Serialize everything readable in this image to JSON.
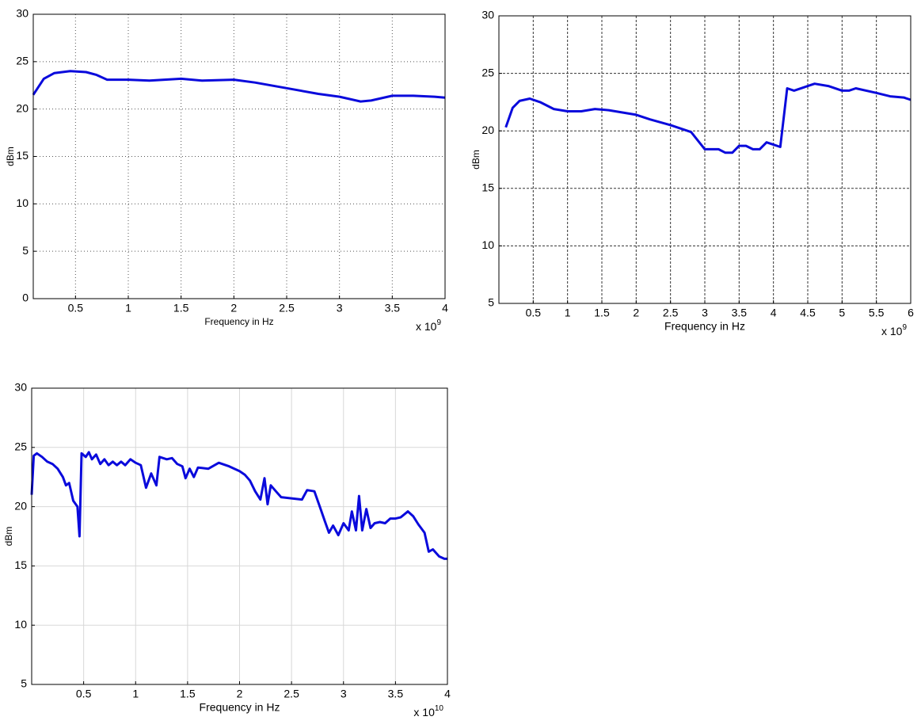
{
  "chart_data": [
    {
      "type": "line",
      "xlabel": "Frequency in Hz",
      "ylabel": "dBm",
      "x_scale_label": "x 10",
      "x_scale_exponent": "9",
      "xlim": [
        0.1,
        4
      ],
      "ylim": [
        0,
        30
      ],
      "xticks": [
        0.5,
        1,
        1.5,
        2,
        2.5,
        3,
        3.5,
        4
      ],
      "yticks": [
        0,
        5,
        10,
        15,
        20,
        25,
        30
      ],
      "grid": true,
      "grid_style": "dotted",
      "color": "#0a0adc",
      "x": [
        0.1,
        0.2,
        0.3,
        0.45,
        0.6,
        0.7,
        0.8,
        1.0,
        1.2,
        1.5,
        1.7,
        2.0,
        2.2,
        2.5,
        2.8,
        3.0,
        3.2,
        3.3,
        3.5,
        3.7,
        3.9,
        4.0
      ],
      "values": [
        21.5,
        23.2,
        23.8,
        24.0,
        23.9,
        23.6,
        23.1,
        23.1,
        23.0,
        23.2,
        23.0,
        23.1,
        22.8,
        22.2,
        21.6,
        21.3,
        20.8,
        20.9,
        21.4,
        21.4,
        21.3,
        21.2
      ]
    },
    {
      "type": "line",
      "xlabel": "Frequency in Hz",
      "ylabel": "dBm",
      "x_scale_label": "x 10",
      "x_scale_exponent": "9",
      "xlim": [
        0,
        6
      ],
      "ylim": [
        5,
        30
      ],
      "xticks": [
        0.5,
        1,
        1.5,
        2,
        2.5,
        3,
        3.5,
        4,
        4.5,
        5,
        5.5,
        6
      ],
      "yticks": [
        5,
        10,
        15,
        20,
        25,
        30
      ],
      "grid": true,
      "grid_style": "dashed",
      "color": "#0a0adc",
      "x": [
        0.1,
        0.2,
        0.3,
        0.45,
        0.6,
        0.8,
        1.0,
        1.2,
        1.4,
        1.6,
        2.0,
        2.2,
        2.5,
        2.8,
        3.0,
        3.2,
        3.3,
        3.4,
        3.5,
        3.6,
        3.7,
        3.8,
        3.9,
        4.0,
        4.1,
        4.2,
        4.3,
        4.5,
        4.6,
        4.8,
        5.0,
        5.1,
        5.2,
        5.5,
        5.7,
        5.9,
        6.0
      ],
      "values": [
        20.3,
        22.0,
        22.6,
        22.8,
        22.5,
        21.9,
        21.7,
        21.7,
        21.9,
        21.8,
        21.4,
        21.0,
        20.5,
        19.9,
        18.4,
        18.4,
        18.1,
        18.1,
        18.7,
        18.7,
        18.4,
        18.4,
        19.0,
        18.8,
        18.6,
        23.7,
        23.5,
        23.9,
        24.1,
        23.9,
        23.5,
        23.5,
        23.7,
        23.3,
        23.0,
        22.9,
        22.7
      ]
    },
    {
      "type": "line",
      "xlabel": "Frequency in Hz",
      "ylabel": "dBm",
      "x_scale_label": "x 10",
      "x_scale_exponent": "10",
      "xlim": [
        0,
        4
      ],
      "ylim": [
        5,
        30
      ],
      "xticks": [
        0.5,
        1,
        1.5,
        2,
        2.5,
        3,
        3.5,
        4
      ],
      "yticks": [
        5,
        10,
        15,
        20,
        25,
        30
      ],
      "grid": true,
      "grid_style": "solid",
      "color": "#0a0adc",
      "x": [
        0.0,
        0.02,
        0.05,
        0.1,
        0.15,
        0.2,
        0.25,
        0.3,
        0.33,
        0.36,
        0.4,
        0.44,
        0.46,
        0.48,
        0.52,
        0.55,
        0.58,
        0.62,
        0.66,
        0.7,
        0.74,
        0.78,
        0.82,
        0.86,
        0.9,
        0.95,
        1.0,
        1.05,
        1.1,
        1.15,
        1.2,
        1.23,
        1.3,
        1.35,
        1.4,
        1.45,
        1.48,
        1.52,
        1.56,
        1.6,
        1.7,
        1.8,
        1.9,
        2.0,
        2.05,
        2.1,
        2.15,
        2.2,
        2.24,
        2.27,
        2.3,
        2.35,
        2.4,
        2.5,
        2.6,
        2.65,
        2.72,
        2.78,
        2.82,
        2.86,
        2.9,
        2.95,
        3.0,
        3.05,
        3.08,
        3.12,
        3.15,
        3.18,
        3.22,
        3.26,
        3.3,
        3.35,
        3.4,
        3.45,
        3.5,
        3.55,
        3.62,
        3.67,
        3.72,
        3.78,
        3.82,
        3.86,
        3.92,
        3.97,
        4.0
      ],
      "values": [
        21.0,
        24.3,
        24.5,
        24.2,
        23.8,
        23.6,
        23.2,
        22.5,
        21.8,
        22.0,
        20.5,
        20.0,
        17.5,
        24.5,
        24.2,
        24.6,
        24.0,
        24.4,
        23.6,
        24.0,
        23.5,
        23.8,
        23.5,
        23.8,
        23.5,
        24.0,
        23.7,
        23.5,
        21.6,
        22.8,
        21.8,
        24.2,
        24.0,
        24.1,
        23.6,
        23.4,
        22.4,
        23.2,
        22.5,
        23.3,
        23.2,
        23.7,
        23.4,
        23.0,
        22.7,
        22.2,
        21.3,
        20.6,
        22.4,
        20.2,
        21.8,
        21.3,
        20.8,
        20.7,
        20.6,
        21.4,
        21.3,
        19.8,
        18.8,
        17.8,
        18.4,
        17.6,
        18.6,
        18.0,
        19.6,
        18.0,
        20.9,
        18.0,
        19.8,
        18.2,
        18.6,
        18.7,
        18.6,
        19.0,
        19.0,
        19.1,
        19.6,
        19.2,
        18.5,
        17.8,
        16.2,
        16.4,
        15.8,
        15.6,
        15.6
      ]
    }
  ]
}
